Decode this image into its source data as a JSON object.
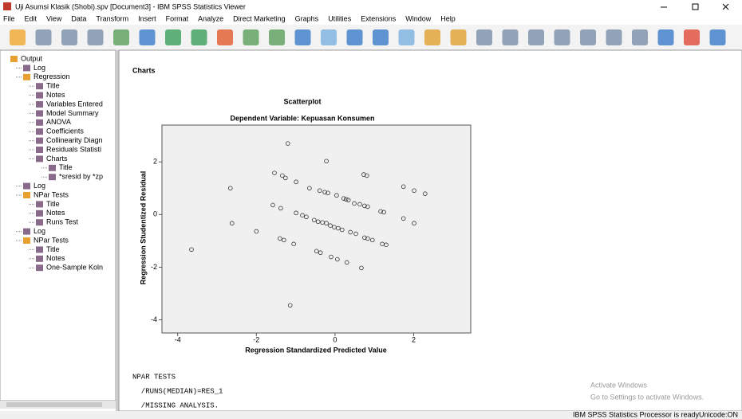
{
  "window": {
    "title": "Uji Asumsi Klasik (Shobi).spv [Document3] - IBM SPSS Statistics Viewer"
  },
  "menu": [
    "File",
    "Edit",
    "View",
    "Data",
    "Transform",
    "Insert",
    "Format",
    "Analyze",
    "Direct Marketing",
    "Graphs",
    "Utilities",
    "Extensions",
    "Window",
    "Help"
  ],
  "tree": [
    {
      "label": "Output",
      "level": 0
    },
    {
      "label": "Log",
      "level": 1
    },
    {
      "label": "Regression",
      "level": 1
    },
    {
      "label": "Title",
      "level": 2
    },
    {
      "label": "Notes",
      "level": 2
    },
    {
      "label": "Variables Entered",
      "level": 2
    },
    {
      "label": "Model Summary",
      "level": 2
    },
    {
      "label": "ANOVA",
      "level": 2
    },
    {
      "label": "Coefficients",
      "level": 2
    },
    {
      "label": "Collinearity Diagn",
      "level": 2
    },
    {
      "label": "Residuals Statisti",
      "level": 2
    },
    {
      "label": "Charts",
      "level": 2
    },
    {
      "label": "Title",
      "level": 3
    },
    {
      "label": "*sresid by *zp",
      "level": 3
    },
    {
      "label": "Log",
      "level": 1
    },
    {
      "label": "NPar Tests",
      "level": 1
    },
    {
      "label": "Title",
      "level": 2
    },
    {
      "label": "Notes",
      "level": 2
    },
    {
      "label": "Runs Test",
      "level": 2
    },
    {
      "label": "Log",
      "level": 1
    },
    {
      "label": "NPar Tests",
      "level": 1
    },
    {
      "label": "Title",
      "level": 2
    },
    {
      "label": "Notes",
      "level": 2
    },
    {
      "label": "One-Sample Koln",
      "level": 2
    }
  ],
  "content": {
    "heading": "Charts",
    "syntax": [
      "NPAR TESTS",
      "  /RUNS(MEDIAN)=RES_1",
      "  /MISSING ANALYSIS."
    ]
  },
  "chart_data": {
    "type": "scatter",
    "title": "Scatterplot",
    "subtitle": "Dependent Variable: Kepuasan Konsumen",
    "x_label": "Regression Standardized Predicted Value",
    "y_label": "Regression Studentized Residual",
    "xlim": [
      -4.4,
      3.45
    ],
    "ylim": [
      -4.5,
      3.4
    ],
    "xticks": [
      -4,
      -2,
      0,
      2
    ],
    "yticks": [
      -4,
      -2,
      0,
      2
    ],
    "color": "#333333",
    "x": [
      -1.2,
      -0.22,
      -2.66,
      -1.54,
      -1.34,
      -1.26,
      -0.99,
      -0.65,
      -0.39,
      -0.26,
      -0.18,
      0.04,
      0.22,
      0.28,
      0.34,
      0.49,
      0.63,
      0.75,
      0.83,
      1.16,
      1.24,
      0.73,
      0.81,
      1.74,
      2.01,
      2.29,
      -1.58,
      -1.38,
      -0.99,
      -0.83,
      -0.73,
      -0.53,
      -0.43,
      -0.32,
      -0.22,
      -0.12,
      -0.02,
      0.08,
      0.18,
      0.39,
      0.53,
      0.75,
      0.83,
      0.95,
      1.2,
      1.3,
      1.74,
      2.01,
      -2.62,
      -2.0,
      -1.4,
      -1.3,
      -1.05,
      -0.47,
      -0.37,
      -0.1,
      0.06,
      0.3,
      0.67,
      -3.65,
      -1.14
    ],
    "values": [
      2.7,
      2.03,
      1.0,
      1.58,
      1.48,
      1.39,
      1.24,
      1.0,
      0.91,
      0.85,
      0.82,
      0.73,
      0.61,
      0.58,
      0.55,
      0.42,
      0.39,
      0.33,
      0.3,
      0.12,
      0.09,
      1.52,
      1.48,
      1.06,
      0.91,
      0.79,
      0.36,
      0.24,
      0.06,
      -0.03,
      -0.09,
      -0.21,
      -0.27,
      -0.3,
      -0.33,
      -0.42,
      -0.48,
      -0.52,
      -0.58,
      -0.67,
      -0.73,
      -0.88,
      -0.91,
      -0.97,
      -1.12,
      -1.15,
      -0.15,
      -0.33,
      -0.33,
      -0.64,
      -0.91,
      -0.97,
      -1.12,
      -1.39,
      -1.45,
      -1.61,
      -1.7,
      -1.82,
      -2.03,
      -1.33,
      -3.45
    ]
  },
  "watermark": {
    "title": "Activate Windows",
    "text": "Go to Settings to activate Windows."
  },
  "status": {
    "left": "IBM SPSS Statistics Processor is ready",
    "right": "Unicode:ON"
  }
}
